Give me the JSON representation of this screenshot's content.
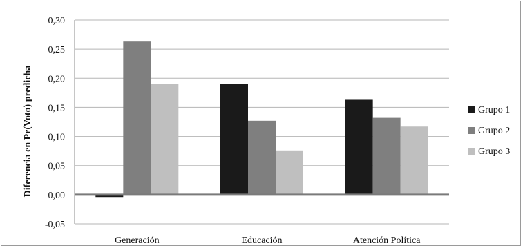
{
  "chart_data": {
    "type": "bar",
    "title": "",
    "xlabel": "",
    "ylabel": "Diferencia en Pr(Voto) predicha",
    "categories": [
      "Generación",
      "Educación",
      "Atención Política"
    ],
    "series": [
      {
        "name": "Grupo 1",
        "values": [
          -0.004,
          0.19,
          0.163
        ],
        "color": "#1a1a1a"
      },
      {
        "name": "Grupo 2",
        "values": [
          0.263,
          0.127,
          0.132
        ],
        "color": "#7f7f7f"
      },
      {
        "name": "Grupo 3",
        "values": [
          0.19,
          0.076,
          0.117
        ],
        "color": "#bfbfbf"
      }
    ],
    "ylim": [
      -0.05,
      0.3
    ],
    "yticks": [
      "-0,05",
      "0,00",
      "0,05",
      "0,10",
      "0,15",
      "0,20",
      "0,25",
      "0,30"
    ],
    "grid": true,
    "legend_position": "right"
  }
}
